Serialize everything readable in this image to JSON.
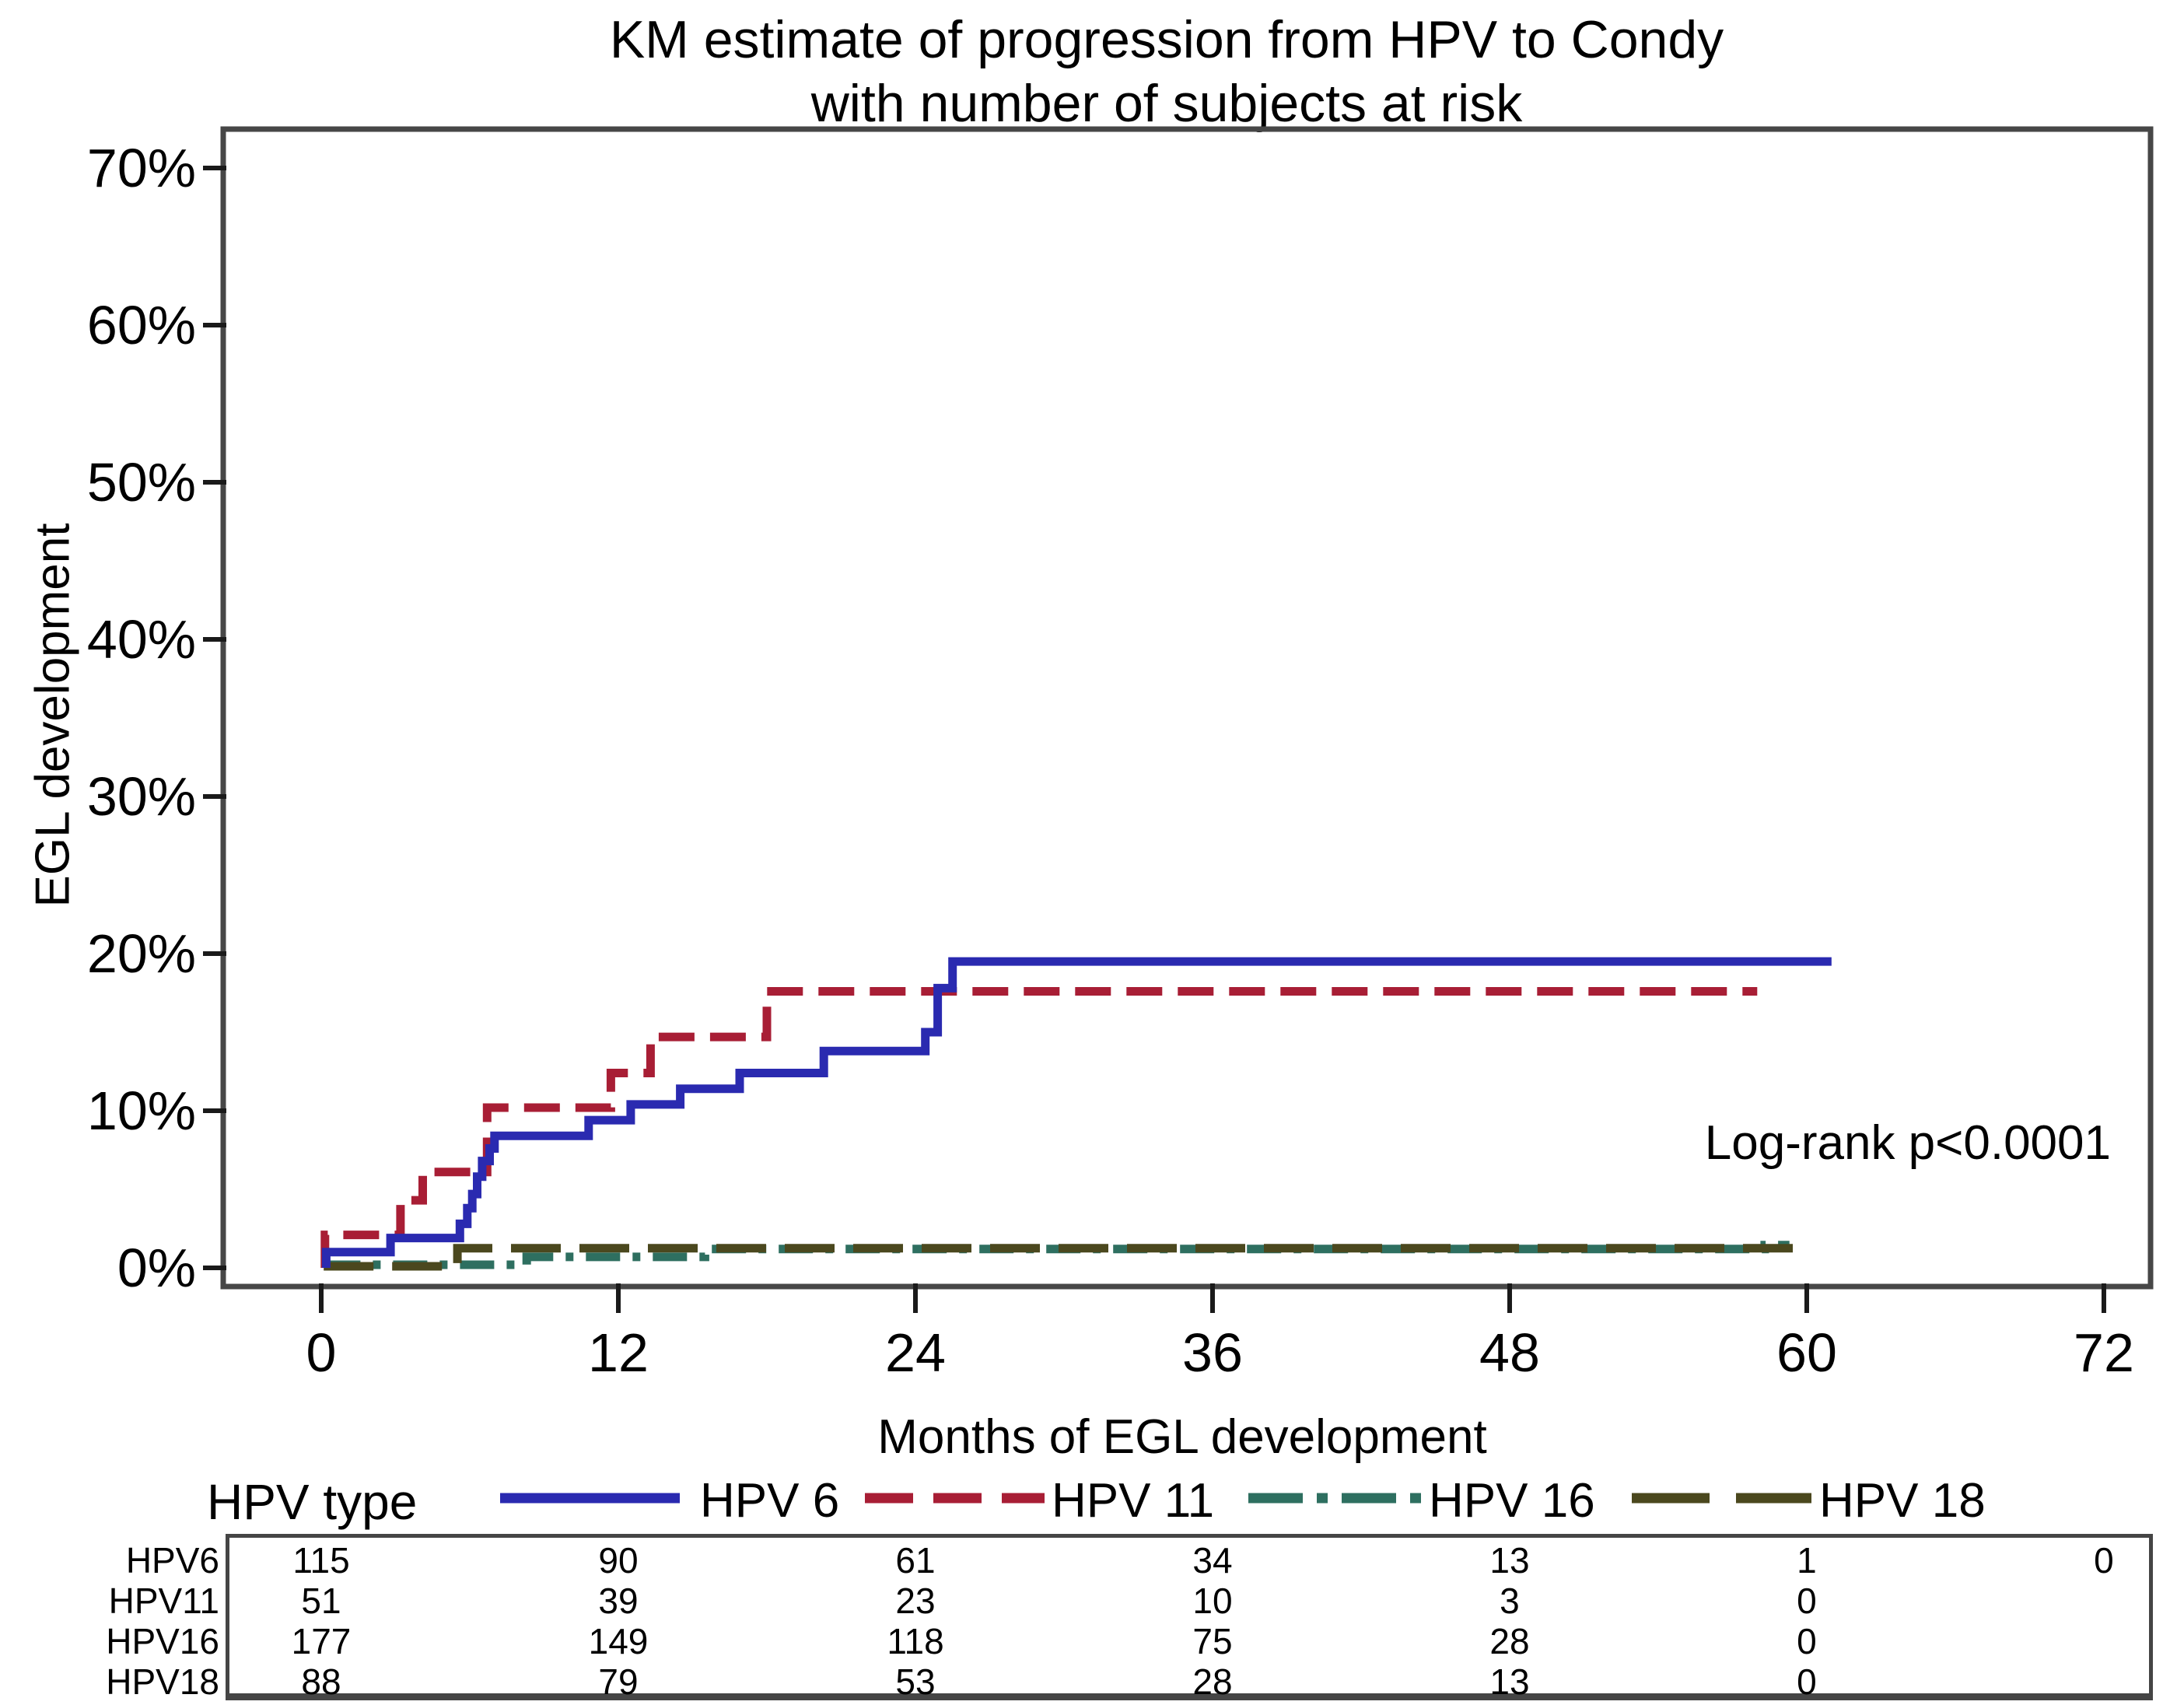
{
  "title": {
    "line1": "KM estimate of progression from HPV to Condy",
    "line2": "with number of subjects at risk"
  },
  "y_axis": {
    "label": "EGL development",
    "ticks": [
      {
        "value": 70,
        "label": "70%"
      },
      {
        "value": 60,
        "label": "60%"
      },
      {
        "value": 50,
        "label": "50%"
      },
      {
        "value": 40,
        "label": "40%"
      },
      {
        "value": 30,
        "label": "30%"
      },
      {
        "value": 20,
        "label": "20%"
      },
      {
        "value": 10,
        "label": "10%"
      },
      {
        "value": 0,
        "label": "0%"
      }
    ]
  },
  "x_axis": {
    "label": "Months of EGL development",
    "ticks": [
      {
        "value": 0,
        "label": "0"
      },
      {
        "value": 12,
        "label": "12"
      },
      {
        "value": 24,
        "label": "24"
      },
      {
        "value": 36,
        "label": "36"
      },
      {
        "value": 48,
        "label": "48"
      },
      {
        "value": 60,
        "label": "60"
      },
      {
        "value": 72,
        "label": "72"
      }
    ]
  },
  "annotation": {
    "text": "Log-rank p<0.0001"
  },
  "legend": {
    "title": "HPV type",
    "items": [
      {
        "label": "HPV 6",
        "color": "#2a2ab0",
        "pattern": "solid"
      },
      {
        "label": "HPV 11",
        "color": "#a81e35",
        "pattern": "dashed"
      },
      {
        "label": "HPV 16",
        "color": "#2e6f60",
        "pattern": "dash-dot"
      },
      {
        "label": "HPV 18",
        "color": "#4b481e",
        "pattern": "long-dash"
      }
    ]
  },
  "risk_table": {
    "rows": [
      {
        "label": "HPV6",
        "values": [
          115,
          90,
          61,
          34,
          13,
          1,
          0
        ]
      },
      {
        "label": "HPV11",
        "values": [
          51,
          39,
          23,
          10,
          3,
          0
        ]
      },
      {
        "label": "HPV16",
        "values": [
          177,
          149,
          118,
          75,
          28,
          0
        ]
      },
      {
        "label": "HPV18",
        "values": [
          88,
          79,
          53,
          28,
          13,
          0
        ]
      }
    ]
  },
  "chart_data": {
    "type": "line",
    "subtype": "kaplan-meier-step",
    "title": "KM estimate of progression from HPV to Condy with number of subjects at risk",
    "xlabel": "Months of EGL development",
    "ylabel": "EGL development",
    "x_range_months": [
      0,
      72
    ],
    "y_range_percent": [
      0,
      70
    ],
    "grid": false,
    "legend_position": "below-axis",
    "annotation": "Log-rank p<0.0001",
    "series": [
      {
        "name": "HPV 6",
        "color": "#2a2ab0",
        "pattern": "solid",
        "points_month_pct": [
          [
            0.2,
            0
          ],
          [
            0.2,
            1.0
          ],
          [
            2.8,
            1.0
          ],
          [
            2.8,
            1.9
          ],
          [
            5.6,
            1.9
          ],
          [
            5.6,
            2.8
          ],
          [
            5.9,
            2.8
          ],
          [
            5.9,
            3.8
          ],
          [
            6.1,
            3.8
          ],
          [
            6.1,
            4.7
          ],
          [
            6.3,
            4.7
          ],
          [
            6.3,
            5.8
          ],
          [
            6.5,
            5.8
          ],
          [
            6.5,
            6.8
          ],
          [
            6.8,
            6.8
          ],
          [
            6.8,
            7.6
          ],
          [
            7.0,
            7.6
          ],
          [
            7.0,
            8.4
          ],
          [
            10.8,
            8.4
          ],
          [
            10.8,
            9.4
          ],
          [
            12.5,
            9.4
          ],
          [
            12.5,
            10.4
          ],
          [
            14.5,
            10.4
          ],
          [
            14.5,
            11.4
          ],
          [
            16.9,
            11.4
          ],
          [
            16.9,
            12.4
          ],
          [
            20.3,
            12.4
          ],
          [
            20.3,
            13.8
          ],
          [
            24.4,
            13.8
          ],
          [
            24.4,
            15.0
          ],
          [
            24.9,
            15.0
          ],
          [
            24.9,
            17.8
          ],
          [
            25.5,
            17.8
          ],
          [
            25.5,
            19.5
          ],
          [
            61,
            19.5
          ]
        ]
      },
      {
        "name": "HPV 11",
        "color": "#a81e35",
        "pattern": "dashed",
        "points_month_pct": [
          [
            0.15,
            0
          ],
          [
            0.15,
            2.1
          ],
          [
            3.2,
            2.1
          ],
          [
            3.2,
            4.3
          ],
          [
            4.1,
            4.3
          ],
          [
            4.1,
            6.1
          ],
          [
            6.7,
            6.1
          ],
          [
            6.7,
            10.2
          ],
          [
            11.7,
            10.2
          ],
          [
            11.7,
            12.4
          ],
          [
            13.3,
            12.4
          ],
          [
            13.3,
            14.7
          ],
          [
            18.0,
            14.7
          ],
          [
            18.0,
            17.6
          ],
          [
            58,
            17.6
          ]
        ]
      },
      {
        "name": "HPV 16",
        "color": "#2e6f60",
        "pattern": "dash-dot",
        "points_month_pct": [
          [
            0.2,
            0.2
          ],
          [
            8.3,
            0.2
          ],
          [
            8.3,
            0.7
          ],
          [
            15.5,
            0.7
          ],
          [
            15.5,
            1.2
          ],
          [
            58.3,
            1.2
          ],
          [
            58.3,
            1.45
          ],
          [
            59.3,
            1.45
          ]
        ]
      },
      {
        "name": "HPV 18",
        "color": "#4b481e",
        "pattern": "long-dash",
        "points_month_pct": [
          [
            0.1,
            0.1
          ],
          [
            5.5,
            0.1
          ],
          [
            5.5,
            1.25
          ],
          [
            60,
            1.25
          ]
        ]
      }
    ],
    "number_at_risk": {
      "timepoints_months": [
        0,
        12,
        24,
        36,
        48,
        60,
        72
      ],
      "HPV6": [
        115,
        90,
        61,
        34,
        13,
        1,
        0
      ],
      "HPV11": [
        51,
        39,
        23,
        10,
        3,
        0
      ],
      "HPV16": [
        177,
        149,
        118,
        75,
        28,
        0
      ],
      "HPV18": [
        88,
        79,
        53,
        28,
        13,
        0
      ]
    }
  }
}
